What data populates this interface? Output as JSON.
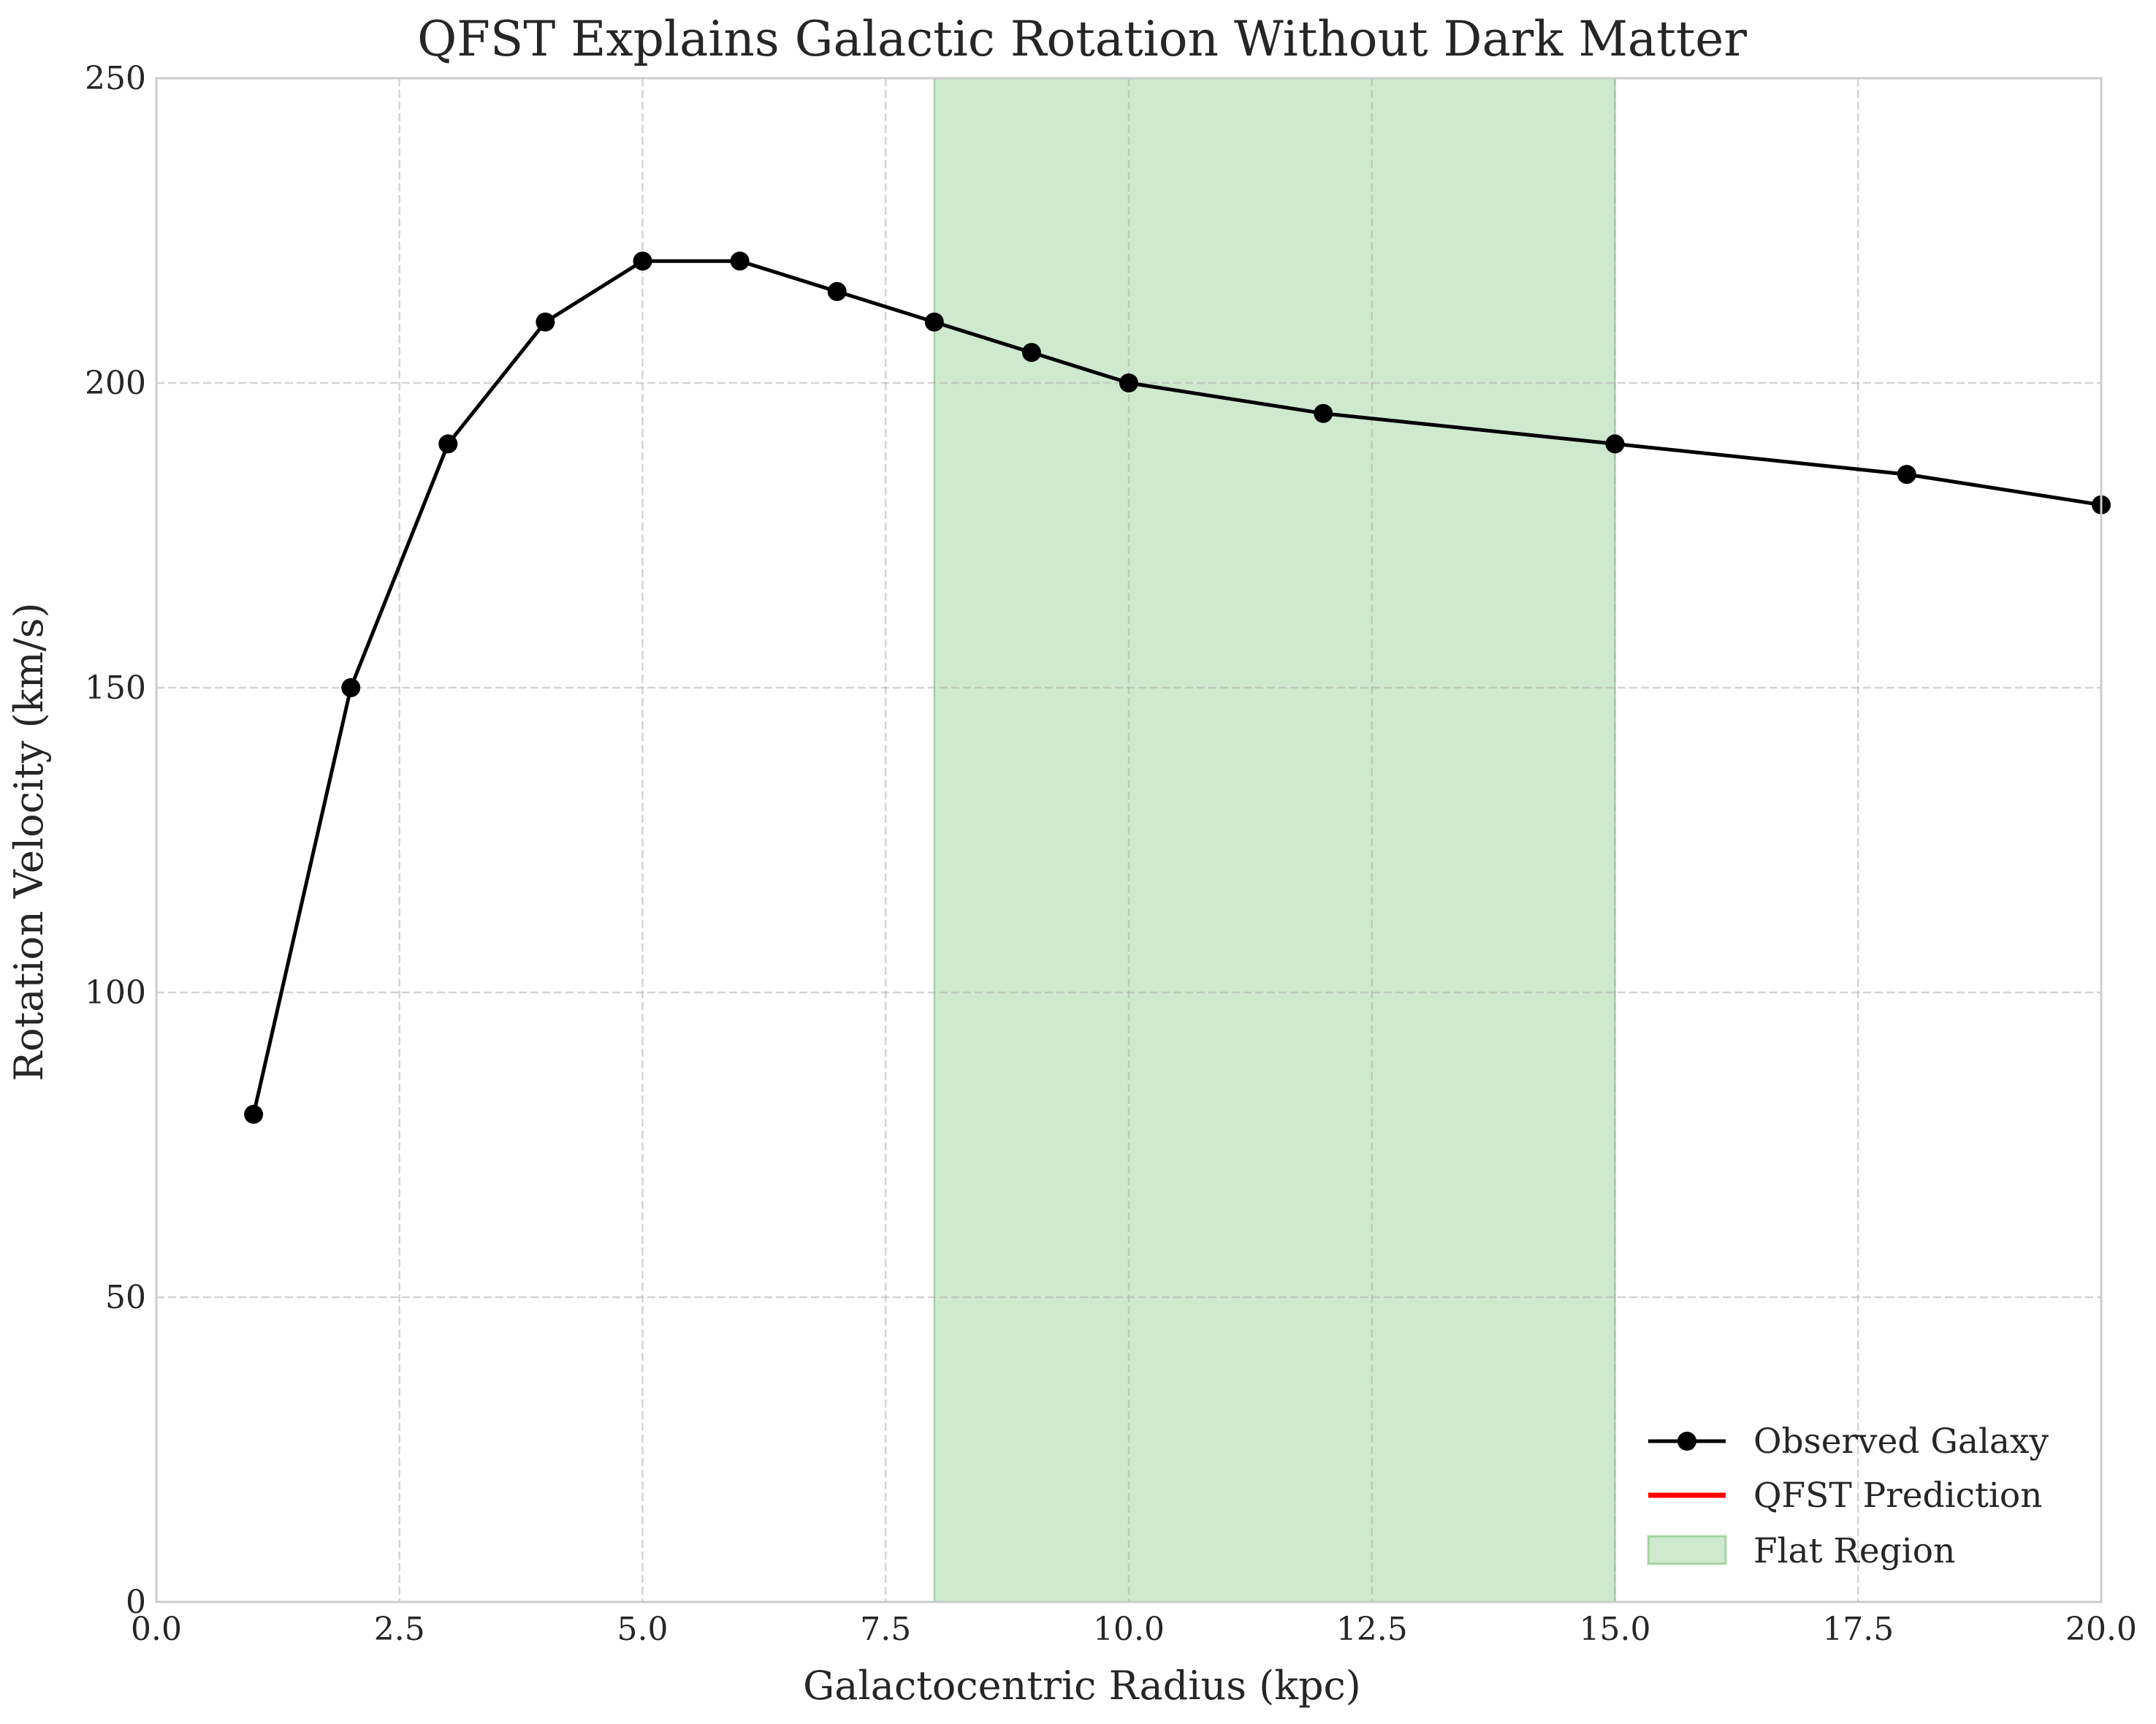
{
  "chart_data": {
    "type": "line",
    "title": "QFST Explains Galactic Rotation Without Dark Matter",
    "xlabel": "Galactocentric Radius (kpc)",
    "ylabel": "Rotation Velocity (km/s)",
    "xlim": [
      0,
      20
    ],
    "ylim": [
      0,
      250
    ],
    "x_ticks": [
      "0.0",
      "2.5",
      "5.0",
      "7.5",
      "10.0",
      "12.5",
      "15.0",
      "17.5",
      "20.0"
    ],
    "y_ticks": [
      "0",
      "50",
      "100",
      "150",
      "200",
      "250"
    ],
    "x_tick_values": [
      0,
      2.5,
      5,
      7.5,
      10,
      12.5,
      15,
      17.5,
      20
    ],
    "y_tick_values": [
      0,
      50,
      100,
      150,
      200,
      250
    ],
    "grid": true,
    "grid_style": "dashed",
    "series": [
      {
        "name": "Observed Galaxy",
        "color": "#000000",
        "marker": "circle",
        "x": [
          1,
          2,
          3,
          4,
          5,
          6,
          7,
          8,
          9,
          10,
          12,
          15,
          18,
          20
        ],
        "y": [
          80,
          150,
          190,
          210,
          220,
          220,
          215,
          210,
          205,
          200,
          195,
          190,
          185,
          180
        ]
      },
      {
        "name": "QFST Prediction",
        "color": "#ff0000",
        "marker": "none",
        "x": [],
        "y": []
      }
    ],
    "shaded_regions": [
      {
        "name": "Flat Region",
        "x_start": 8,
        "x_end": 15,
        "color": "#2ca02c",
        "alpha": 0.23
      }
    ],
    "legend": {
      "position": "lower-right",
      "entries": [
        "Observed Galaxy",
        "QFST Prediction",
        "Flat Region"
      ]
    }
  }
}
